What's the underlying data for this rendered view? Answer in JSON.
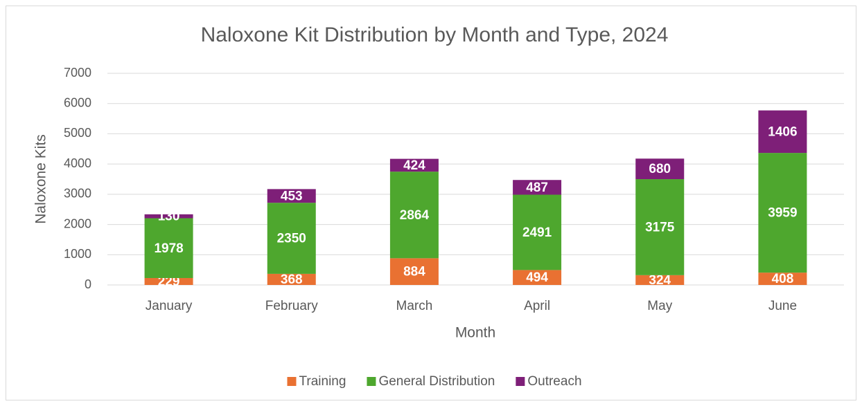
{
  "chart_data": {
    "type": "stacked_bar",
    "title": "Naloxone Kit Distribution by Month and Type, 2024",
    "x_label": "Month",
    "y_label": "Naloxone Kits",
    "categories": [
      "January",
      "February",
      "March",
      "April",
      "May",
      "June"
    ],
    "series": [
      {
        "name": "Training",
        "color": "#E97132",
        "values": [
          229,
          368,
          884,
          494,
          324,
          408
        ]
      },
      {
        "name": "General Distribution",
        "color": "#4EA72E",
        "values": [
          1978,
          2350,
          2864,
          2491,
          3175,
          3959
        ]
      },
      {
        "name": "Outreach",
        "color": "#7E1F78",
        "values": [
          130,
          453,
          424,
          487,
          680,
          1406
        ]
      }
    ],
    "ylim": [
      0,
      7000
    ],
    "yticks": [
      0,
      1000,
      2000,
      3000,
      4000,
      5000,
      6000,
      7000
    ],
    "grid": true,
    "legend": "bottom",
    "data_labels": true
  }
}
